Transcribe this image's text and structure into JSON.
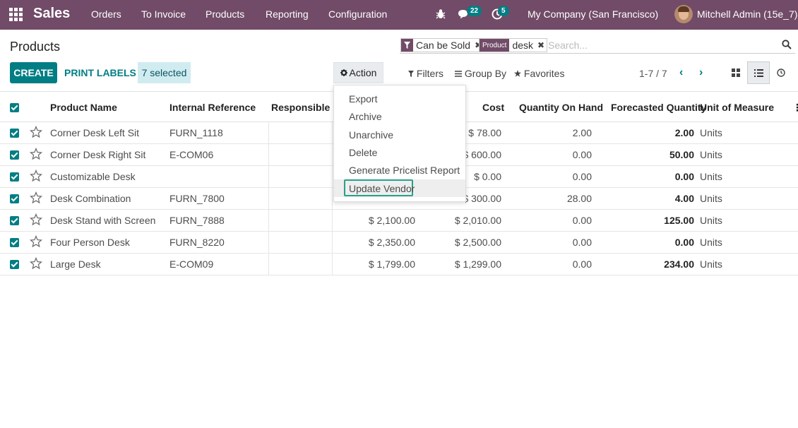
{
  "navbar": {
    "brand": "Sales",
    "menus": [
      "Orders",
      "To Invoice",
      "Products",
      "Reporting",
      "Configuration"
    ],
    "messages_count": "22",
    "activities_count": "5",
    "company": "My Company (San Francisco)",
    "user": "Mitchell Admin (15e_7)"
  },
  "page": {
    "title": "Products",
    "create_label": "CREATE",
    "print_labels": "PRINT LABELS",
    "selected_label": "7 selected",
    "action_label": "Action",
    "filters_label": "Filters",
    "groupby_label": "Group By",
    "favorites_label": "Favorites",
    "pager": "1-7 / 7"
  },
  "search": {
    "facet1_value": "Can be Sold",
    "facet2_tag": "Product",
    "facet2_value": "desk",
    "placeholder": "Search..."
  },
  "columns": [
    "Product Name",
    "Internal Reference",
    "Responsible",
    "Cost",
    "Quantity On Hand",
    "Forecasted Quantity",
    "Unit of Measure"
  ],
  "rows": [
    {
      "name": "Corner Desk Left Sit",
      "ref": "FURN_1118",
      "price": "",
      "cost": "$ 78.00",
      "qty": "2.00",
      "forecast": "2.00",
      "uom": "Units"
    },
    {
      "name": "Corner Desk Right Sit",
      "ref": "E-COM06",
      "price": "",
      "cost": "$ 600.00",
      "qty": "0.00",
      "forecast": "50.00",
      "uom": "Units"
    },
    {
      "name": "Customizable Desk",
      "ref": "",
      "price": "",
      "cost": "$ 0.00",
      "qty": "0.00",
      "forecast": "0.00",
      "uom": "Units"
    },
    {
      "name": "Desk Combination",
      "ref": "FURN_7800",
      "price": "",
      "cost": "$ 300.00",
      "qty": "28.00",
      "forecast": "4.00",
      "uom": "Units"
    },
    {
      "name": "Desk Stand with Screen",
      "ref": "FURN_7888",
      "price": "$ 2,100.00",
      "cost": "$ 2,010.00",
      "qty": "0.00",
      "forecast": "125.00",
      "uom": "Units"
    },
    {
      "name": "Four Person Desk",
      "ref": "FURN_8220",
      "price": "$ 2,350.00",
      "cost": "$ 2,500.00",
      "qty": "0.00",
      "forecast": "0.00",
      "uom": "Units"
    },
    {
      "name": "Large Desk",
      "ref": "E-COM09",
      "price": "$ 1,799.00",
      "cost": "$ 1,299.00",
      "qty": "0.00",
      "forecast": "234.00",
      "uom": "Units"
    }
  ],
  "action_menu": [
    "Export",
    "Archive",
    "Unarchive",
    "Delete",
    "Generate Pricelist Report",
    "Update Vendor"
  ],
  "colors": {
    "brand": "#714b67",
    "primary": "#017e84",
    "focus": "#28a08a"
  }
}
